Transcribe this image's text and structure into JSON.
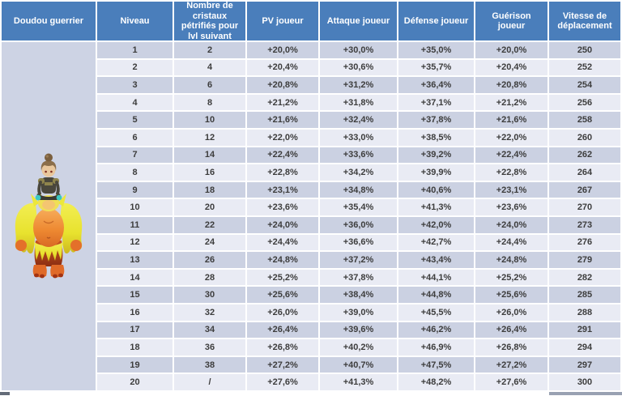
{
  "table": {
    "headers": [
      "Doudou guerrier",
      "Niveau",
      "Nombre de cristaux pétrifiés pour lvl suivant",
      "PV joueur",
      "Attaque joueur",
      "Défense joueur",
      "Guérison joueur",
      "Vitesse de déplacement"
    ],
    "rows": [
      [
        "1",
        "2",
        "+20,0%",
        "+30,0%",
        "+35,0%",
        "+20,0%",
        "250"
      ],
      [
        "2",
        "4",
        "+20,4%",
        "+30,6%",
        "+35,7%",
        "+20,4%",
        "252"
      ],
      [
        "3",
        "6",
        "+20,8%",
        "+31,2%",
        "+36,4%",
        "+20,8%",
        "254"
      ],
      [
        "4",
        "8",
        "+21,2%",
        "+31,8%",
        "+37,1%",
        "+21,2%",
        "256"
      ],
      [
        "5",
        "10",
        "+21,6%",
        "+32,4%",
        "+37,8%",
        "+21,6%",
        "258"
      ],
      [
        "6",
        "12",
        "+22,0%",
        "+33,0%",
        "+38,5%",
        "+22,0%",
        "260"
      ],
      [
        "7",
        "14",
        "+22,4%",
        "+33,6%",
        "+39,2%",
        "+22,4%",
        "262"
      ],
      [
        "8",
        "16",
        "+22,8%",
        "+34,2%",
        "+39,9%",
        "+22,8%",
        "264"
      ],
      [
        "9",
        "18",
        "+23,1%",
        "+34,8%",
        "+40,6%",
        "+23,1%",
        "267"
      ],
      [
        "10",
        "20",
        "+23,6%",
        "+35,4%",
        "+41,3%",
        "+23,6%",
        "270"
      ],
      [
        "11",
        "22",
        "+24,0%",
        "+36,0%",
        "+42,0%",
        "+24,0%",
        "273"
      ],
      [
        "12",
        "24",
        "+24,4%",
        "+36,6%",
        "+42,7%",
        "+24,4%",
        "276"
      ],
      [
        "13",
        "26",
        "+24,8%",
        "+37,2%",
        "+43,4%",
        "+24,8%",
        "279"
      ],
      [
        "14",
        "28",
        "+25,2%",
        "+37,8%",
        "+44,1%",
        "+25,2%",
        "282"
      ],
      [
        "15",
        "30",
        "+25,6%",
        "+38,4%",
        "+44,8%",
        "+25,6%",
        "285"
      ],
      [
        "16",
        "32",
        "+26,0%",
        "+39,0%",
        "+45,5%",
        "+26,0%",
        "288"
      ],
      [
        "17",
        "34",
        "+26,4%",
        "+39,6%",
        "+46,2%",
        "+26,4%",
        "291"
      ],
      [
        "18",
        "36",
        "+26,8%",
        "+40,2%",
        "+46,9%",
        "+26,8%",
        "294"
      ],
      [
        "19",
        "38",
        "+27,2%",
        "+40,7%",
        "+47,5%",
        "+27,2%",
        "297"
      ],
      [
        "20",
        "/",
        "+27,6%",
        "+41,3%",
        "+48,2%",
        "+27,6%",
        "300"
      ]
    ]
  },
  "colors": {
    "header_bg": "#4a7ebb",
    "header_text": "#ffffff",
    "row_odd": "#cbd1e2",
    "row_even": "#e9ebf4",
    "left_cell_bg": "#cdd3e4",
    "cell_text": "#3d3d3d"
  }
}
